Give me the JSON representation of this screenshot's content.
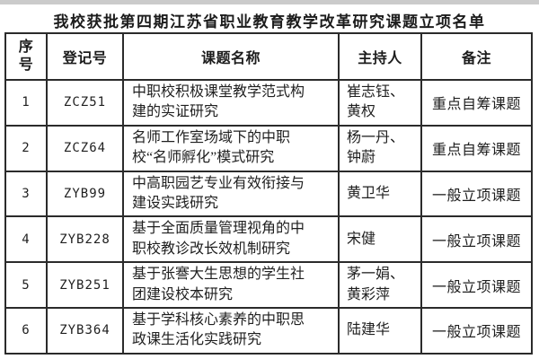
{
  "page": {
    "title": "我校获批第四期江苏省职业教育教学改革研究课题立项名单"
  },
  "colors": {
    "background": "#ffffff",
    "text": "#1f1f1f",
    "border": "#2b2b2b",
    "top_strip": "#cbcbcb"
  },
  "table": {
    "headers": {
      "no": "序号",
      "reg": "登记号",
      "project": "课题名称",
      "leader": "主持人",
      "remark": "备注"
    },
    "rows": [
      {
        "no": "1",
        "reg": "ZCZ51",
        "project": "中职校积极课堂教学范式构建的实证研究",
        "leader": "崔志钰、黄权",
        "remark": "重点自筹课题"
      },
      {
        "no": "2",
        "reg": "ZCZ64",
        "project": "名师工作室场域下的中职校“名师孵化”模式研究",
        "leader": "杨一丹、钟蔚",
        "remark": "重点自筹课题"
      },
      {
        "no": "3",
        "reg": "ZYB99",
        "project": "中高职园艺专业有效衔接与建设实践研究",
        "leader": "黄卫华",
        "remark": "一般立项课题"
      },
      {
        "no": "4",
        "reg": "ZYB228",
        "project": "基于全面质量管理视角的中职校教诊改长效机制研究",
        "leader": "宋健",
        "remark": "一般立项课题"
      },
      {
        "no": "5",
        "reg": "ZYB251",
        "project": "基于张謇大生思想的学生社团建设校本研究",
        "leader": "茅一娟、黄彩萍",
        "remark": "一般立项课题"
      },
      {
        "no": "6",
        "reg": "ZYB364",
        "project": "基于学科核心素养的中职思政课生活化实践研究",
        "leader": "陆建华",
        "remark": "一般立项课题"
      }
    ]
  }
}
